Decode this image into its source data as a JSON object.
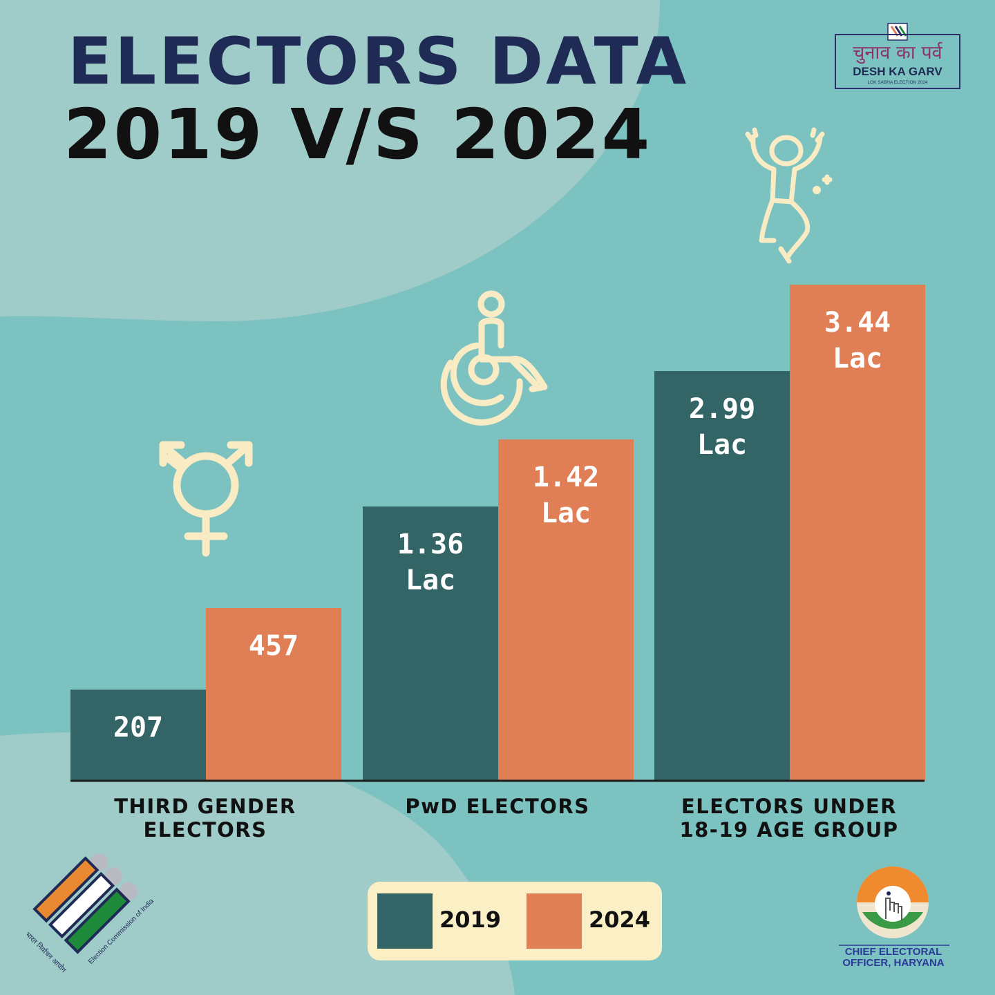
{
  "header": {
    "title_line1": "ELECTORS DATA",
    "title_line2": "2019 V/S 2024"
  },
  "logo": {
    "hindi": "चुनाव का पर्व",
    "english": "DESH KA GARV",
    "subtitle": "LOK SABHA ELECTION 2024"
  },
  "chart_data": {
    "type": "bar",
    "categories": [
      "THIRD GENDER\nELECTORS",
      "PwD ELECTORS",
      "ELECTORS UNDER\n18-19 AGE GROUP"
    ],
    "series": [
      {
        "name": "2019",
        "labels": [
          "207",
          "1.36\nLac",
          "2.99\nLac"
        ],
        "color": "#336567"
      },
      {
        "name": "2024",
        "labels": [
          "457",
          "1.42\nLac",
          "3.44\nLac"
        ],
        "color": "#e07e55"
      }
    ],
    "legend_position": "bottom-center",
    "grid": false
  },
  "icons": [
    "transgender-symbol-icon",
    "wheelchair-icon",
    "jumping-person-icon"
  ],
  "footer": {
    "eci_hindi": "भारत निर्वाचन आयोग",
    "eci_english": "Election Commission of India",
    "ceo_text": "CHIEF ELECTORAL\nOFFICER, HARYANA"
  },
  "colors": {
    "background": "#7cc2c1",
    "series_2019": "#336567",
    "series_2024": "#e07e55",
    "icon_cream": "#f9ecc4",
    "legend_panel": "#fbefc6",
    "title_navy": "#1f2a55"
  }
}
